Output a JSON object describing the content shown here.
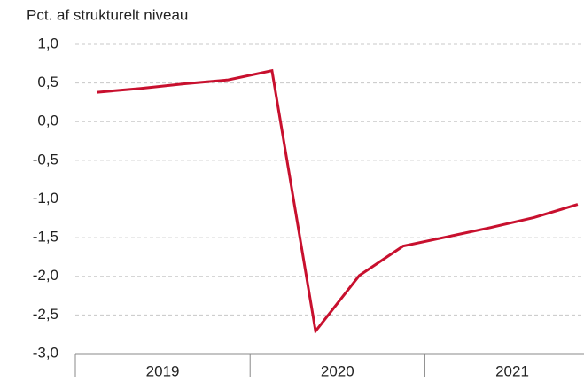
{
  "chart_data": {
    "type": "line",
    "title": "Pct. af strukturelt niveau",
    "categories": [
      null,
      null,
      null,
      null,
      null,
      null,
      null,
      null,
      null,
      null,
      null,
      null
    ],
    "category_groups": [
      "2019",
      "2020",
      "2021"
    ],
    "series": [
      {
        "name": null,
        "color": "#c8102e",
        "values": [
          0.38,
          0.43,
          0.49,
          0.54,
          0.66,
          -2.71,
          -1.99,
          -1.61,
          -1.49,
          -1.37,
          -1.24,
          -1.07
        ]
      }
    ],
    "ylim": [
      -3.0,
      1.0
    ],
    "yticks": [
      {
        "value": 1.0,
        "label": "1,0"
      },
      {
        "value": 0.5,
        "label": "0,5"
      },
      {
        "value": 0.0,
        "label": "0,0"
      },
      {
        "value": -0.5,
        "label": "-0,5"
      },
      {
        "value": -1.0,
        "label": "-1,0"
      },
      {
        "value": -1.5,
        "label": "-1,5"
      },
      {
        "value": -2.0,
        "label": "-2,0"
      },
      {
        "value": -2.5,
        "label": "-2,5"
      },
      {
        "value": -3.0,
        "label": "-3,0"
      }
    ],
    "grid": true
  }
}
